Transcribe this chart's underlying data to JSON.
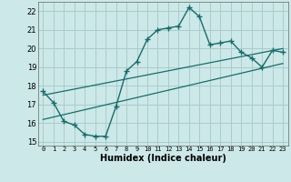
{
  "title": "",
  "xlabel": "Humidex (Indice chaleur)",
  "background_color": "#cce8e8",
  "grid_color": "#aacccc",
  "line_color": "#1a6b6b",
  "xlim": [
    -0.5,
    23.5
  ],
  "ylim": [
    14.8,
    22.5
  ],
  "xticks": [
    0,
    1,
    2,
    3,
    4,
    5,
    6,
    7,
    8,
    9,
    10,
    11,
    12,
    13,
    14,
    15,
    16,
    17,
    18,
    19,
    20,
    21,
    22,
    23
  ],
  "yticks": [
    15,
    16,
    17,
    18,
    19,
    20,
    21,
    22
  ],
  "curve1_x": [
    0,
    1,
    2,
    3,
    4,
    5,
    6,
    7,
    8,
    9,
    10,
    11,
    12,
    13,
    14,
    15,
    16,
    17,
    18,
    19,
    20,
    21,
    22,
    23
  ],
  "curve1_y": [
    17.7,
    17.1,
    16.1,
    15.9,
    15.4,
    15.3,
    15.3,
    16.9,
    18.8,
    19.3,
    20.5,
    21.0,
    21.1,
    21.2,
    22.2,
    21.7,
    20.2,
    20.3,
    20.4,
    19.8,
    19.5,
    19.0,
    19.9,
    19.8
  ],
  "curve2_x": [
    0,
    23
  ],
  "curve2_y": [
    16.2,
    19.2
  ],
  "curve3_x": [
    0,
    23
  ],
  "curve3_y": [
    17.5,
    20.0
  ]
}
